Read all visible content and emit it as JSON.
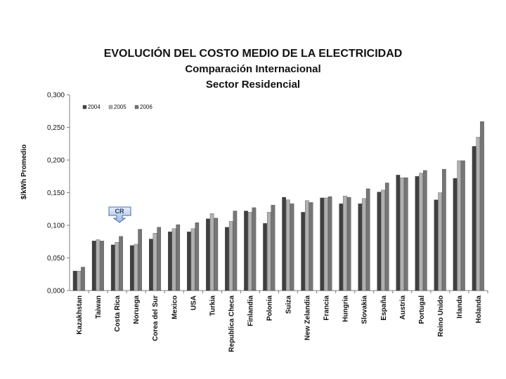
{
  "title": {
    "line1": "EVOLUCIÓN DEL COSTO MEDIO DE LA ELECTRICIDAD",
    "line2": "Comparación Internacional",
    "line3": "Sector Residencial"
  },
  "callout": {
    "label": "CR",
    "points_to": "Costa Rica"
  },
  "chart_data": {
    "type": "bar",
    "ylabel": "$/kWh Promedio",
    "ylim": [
      0,
      0.3
    ],
    "yticks": [
      "0,000",
      "0,050",
      "0,100",
      "0,150",
      "0,200",
      "0,250",
      "0,300"
    ],
    "grid": false,
    "legend_position": "top-left",
    "categories": [
      "Kazakhstan",
      "Taiwan",
      "Costa Rica",
      "Noruega",
      "Corea del Sur",
      "Mexico",
      "USA",
      "Turkia",
      "Republica Checa",
      "Finlandia",
      "Polonia",
      "Suiza",
      "New Zelandia",
      "Francia",
      "Hungria",
      "Slovakia",
      "España",
      "Austria",
      "Portugal",
      "Reino Unido",
      "Irlanda",
      "Holanda"
    ],
    "series": [
      {
        "name": "2004",
        "color": "#404040",
        "values": [
          0.03,
          0.076,
          0.07,
          0.069,
          0.079,
          0.09,
          0.09,
          0.11,
          0.097,
          0.122,
          0.103,
          0.143,
          0.12,
          0.142,
          0.133,
          0.133,
          0.151,
          0.177,
          0.175,
          0.139,
          0.172,
          0.221
        ]
      },
      {
        "name": "2005",
        "color": "#b0b0b0",
        "values": [
          0.03,
          0.078,
          0.074,
          0.071,
          0.088,
          0.095,
          0.095,
          0.118,
          0.106,
          0.12,
          0.12,
          0.139,
          0.138,
          0.142,
          0.145,
          0.141,
          0.154,
          0.173,
          0.18,
          0.15,
          0.199,
          0.235
        ]
      },
      {
        "name": "2006",
        "color": "#767676",
        "values": [
          0.036,
          0.076,
          0.083,
          0.094,
          0.097,
          0.101,
          0.104,
          0.111,
          0.122,
          0.127,
          0.131,
          0.133,
          0.135,
          0.144,
          0.143,
          0.156,
          0.165,
          0.173,
          0.184,
          0.186,
          0.199,
          0.259
        ]
      }
    ]
  }
}
